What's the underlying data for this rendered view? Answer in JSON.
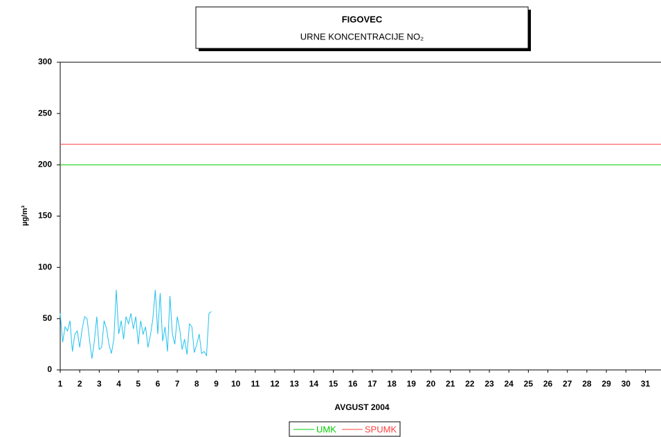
{
  "chart_data": {
    "type": "line",
    "title": "FIGOVEC",
    "subtitle": "URNE KONCENTRACIJE NO₂",
    "ylabel": "µg/m³",
    "xlabel": "AVGUST 2004",
    "color": "#1ec0f0",
    "x": [
      1,
      1.125,
      1.25,
      1.375,
      1.5,
      1.625,
      1.75,
      1.875,
      2,
      2.125,
      2.25,
      2.375,
      2.5,
      2.625,
      2.75,
      2.875,
      3,
      3.125,
      3.25,
      3.375,
      3.5,
      3.625,
      3.75,
      3.875,
      4,
      4.125,
      4.25,
      4.375,
      4.5,
      4.625,
      4.75,
      4.875,
      5,
      5.125,
      5.25,
      5.375,
      5.5,
      5.625,
      5.75,
      5.875,
      6,
      6.125,
      6.25,
      6.375,
      6.5,
      6.625,
      6.75,
      6.875,
      7,
      7.125,
      7.25,
      7.375,
      7.5,
      7.625,
      7.75,
      7.875,
      8,
      8.125,
      8.25,
      8.375,
      8.5,
      8.625,
      8.75
    ],
    "values": [
      55,
      27,
      42,
      38,
      48,
      18,
      35,
      38,
      22,
      40,
      52,
      50,
      30,
      11,
      28,
      52,
      20,
      22,
      48,
      40,
      25,
      16,
      30,
      78,
      35,
      48,
      30,
      52,
      45,
      55,
      40,
      52,
      25,
      48,
      35,
      42,
      22,
      34,
      50,
      78,
      35,
      75,
      28,
      42,
      18,
      72,
      35,
      25,
      52,
      40,
      20,
      30,
      15,
      45,
      42,
      17,
      25,
      35,
      16,
      18,
      14,
      55,
      57
    ],
    "limits": [
      {
        "name": "UMK",
        "color": "#00cc00",
        "value": 200
      },
      {
        "name": "SPUMK",
        "color": "#ff4040",
        "value": 220
      }
    ],
    "xlim": [
      1,
      31.8
    ],
    "ylim": [
      0,
      300
    ],
    "xticks": [
      1,
      2,
      3,
      4,
      5,
      6,
      7,
      8,
      9,
      10,
      11,
      12,
      13,
      14,
      15,
      16,
      17,
      18,
      19,
      20,
      21,
      22,
      23,
      24,
      25,
      26,
      27,
      28,
      29,
      30,
      31
    ],
    "yticks": [
      0,
      50,
      100,
      150,
      200,
      250,
      300
    ]
  }
}
